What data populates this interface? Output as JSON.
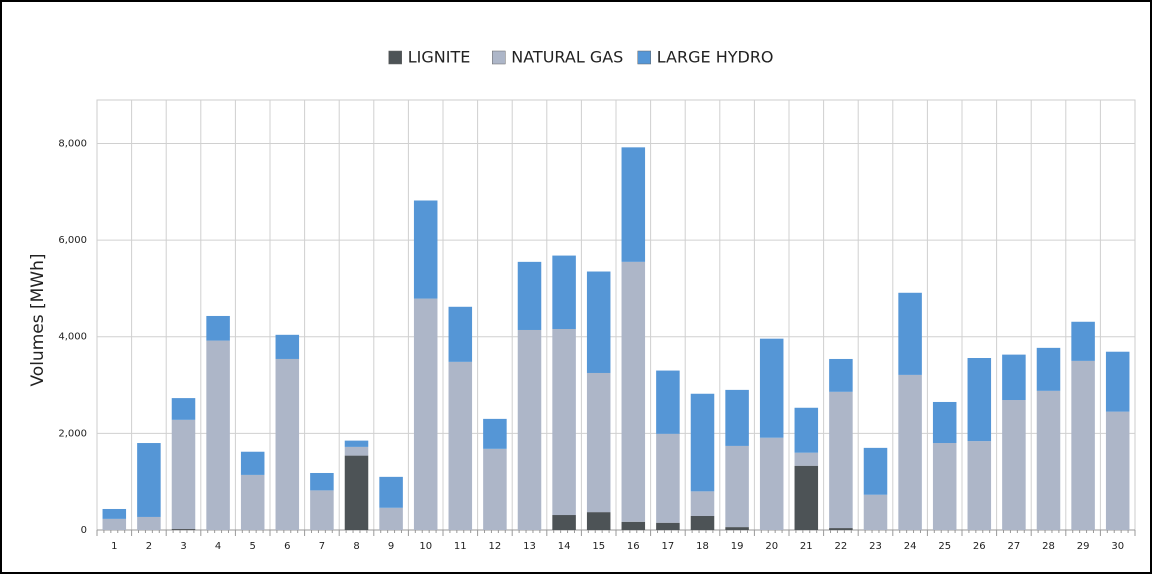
{
  "chart_data": {
    "type": "stacked_bar",
    "y_label": "Volumes [MWh]",
    "categories": [
      "1",
      "2",
      "3",
      "4",
      "5",
      "6",
      "7",
      "8",
      "9",
      "10",
      "11",
      "12",
      "13",
      "14",
      "15",
      "16",
      "17",
      "18",
      "19",
      "20",
      "21",
      "22",
      "23",
      "24",
      "25",
      "26",
      "27",
      "28",
      "29",
      "30"
    ],
    "series": [
      {
        "name": "LIGNITE",
        "color": "#4d5356",
        "values": [
          0,
          0,
          20,
          0,
          0,
          0,
          0,
          1540,
          0,
          0,
          0,
          0,
          0,
          310,
          370,
          170,
          150,
          290,
          60,
          0,
          1330,
          40,
          0,
          0,
          0,
          0,
          0,
          0,
          0,
          0
        ]
      },
      {
        "name": "NATURAL GAS",
        "color": "#adb6c8",
        "values": [
          230,
          270,
          2260,
          3920,
          1140,
          3540,
          820,
          180,
          460,
          4790,
          3480,
          1680,
          4140,
          3850,
          2880,
          5380,
          1840,
          510,
          1680,
          1910,
          270,
          2820,
          730,
          3210,
          1800,
          1840,
          2690,
          2880,
          3500,
          2450
        ]
      },
      {
        "name": "LARGE HYDRO",
        "color": "#5596d6",
        "values": [
          205,
          1530,
          450,
          510,
          480,
          500,
          360,
          130,
          640,
          2030,
          1140,
          620,
          1410,
          1520,
          2100,
          2370,
          1310,
          2020,
          1160,
          2050,
          930,
          680,
          970,
          1700,
          850,
          1720,
          940,
          890,
          810,
          1240
        ]
      }
    ],
    "ylim": [
      0,
      8900
    ],
    "yticks": [
      0,
      {
        "value": 2000,
        "label": "2,000"
      },
      {
        "value": 4000,
        "label": "4,000"
      },
      {
        "value": 6000,
        "label": "6,000"
      },
      {
        "value": 8000,
        "label": "8,000"
      }
    ],
    "grid": true
  }
}
